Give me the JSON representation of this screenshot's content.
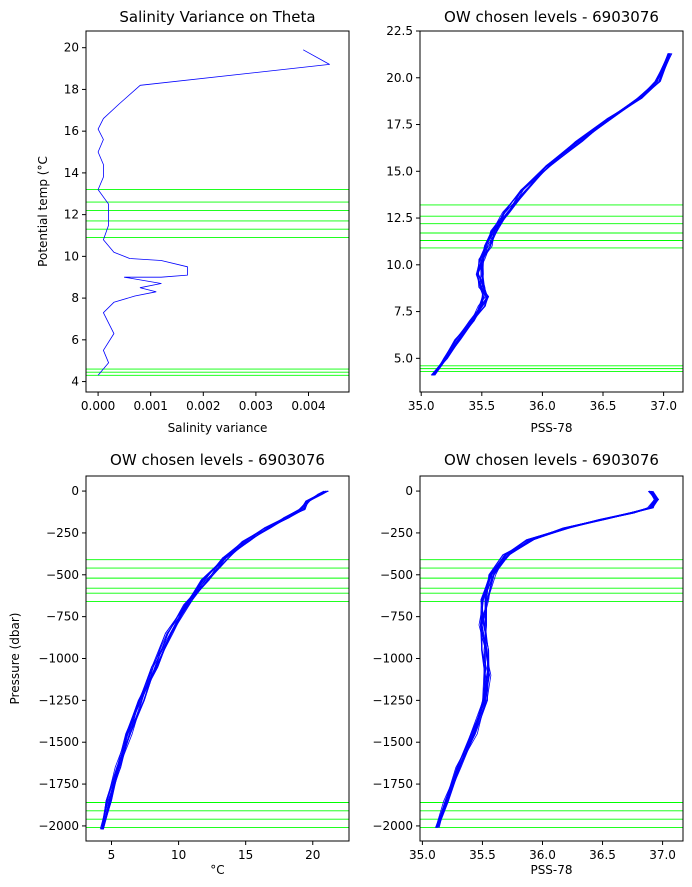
{
  "figure": {
    "y_label_shared_bottom": "Pressure (dbar)"
  },
  "chart_data": [
    {
      "type": "line",
      "title": "Salinity Variance on Theta",
      "xlabel": "Salinity variance",
      "ylabel": "Potential temp (°C",
      "xlim": [
        -0.00023,
        0.00477
      ],
      "ylim": [
        3.5,
        20.8
      ],
      "xticks": [
        0.0,
        0.001,
        0.002,
        0.003,
        0.004
      ],
      "xtick_labels": [
        "0.000",
        "0.001",
        "0.002",
        "0.003",
        "0.004"
      ],
      "yticks": [
        4,
        6,
        8,
        10,
        12,
        14,
        16,
        18,
        20
      ],
      "ytick_labels": [
        "4",
        "6",
        "8",
        "10",
        "12",
        "14",
        "16",
        "18",
        "20"
      ],
      "series_color": "#0000ff",
      "hline_color": "#00ff00",
      "hlines": [
        4.3,
        4.45,
        4.6,
        10.9,
        11.3,
        11.7,
        12.2,
        12.6,
        13.2
      ],
      "series": [
        {
          "x": [
            0.0,
            0.0002,
            0.0001,
            0.0003,
            0.0001,
            0.0003,
            0.0007,
            0.0011,
            0.0008,
            0.0012,
            0.0005,
            0.0012,
            0.0017,
            0.0017,
            0.0012,
            0.0006,
            0.0003,
            0.0001,
            0.0002,
            0.0002,
            0.0,
            0.0001,
            0.0001,
            0.0,
            0.0001,
            0.0,
            0.0001,
            0.0004,
            0.0008,
            0.0044,
            0.0039
          ],
          "y": [
            4.3,
            4.9,
            5.5,
            6.3,
            7.3,
            7.8,
            8.1,
            8.3,
            8.5,
            8.7,
            9.0,
            9.0,
            9.1,
            9.5,
            9.8,
            9.9,
            10.2,
            10.8,
            11.5,
            12.5,
            13.2,
            13.8,
            14.4,
            15.0,
            15.6,
            16.1,
            16.6,
            17.3,
            18.2,
            19.2,
            19.9
          ]
        }
      ]
    },
    {
      "type": "line",
      "title": "OW chosen levels - 6903076",
      "xlabel": "PSS-78",
      "ylabel": "",
      "xlim": [
        34.99,
        37.16
      ],
      "ylim": [
        3.2,
        22.5
      ],
      "xticks": [
        35.0,
        35.5,
        36.0,
        36.5,
        37.0
      ],
      "xtick_labels": [
        "35.0",
        "35.5",
        "36.0",
        "36.5",
        "37.0"
      ],
      "yticks": [
        5.0,
        7.5,
        10.0,
        12.5,
        15.0,
        17.5,
        20.0,
        22.5
      ],
      "ytick_labels": [
        "5.0",
        "7.5",
        "10.0",
        "12.5",
        "15.0",
        "17.5",
        "20.0",
        "22.5"
      ],
      "series_color": "#0000ff",
      "hline_color": "#00ff00",
      "hlines": [
        4.3,
        4.45,
        4.6,
        10.9,
        11.3,
        11.7,
        12.2,
        12.6,
        13.2
      ],
      "series": [
        {
          "x": [
            35.1,
            35.2,
            35.3,
            35.42,
            35.5,
            35.53,
            35.5,
            35.48,
            35.5,
            35.55,
            35.6,
            35.7,
            35.85,
            36.05,
            36.3,
            36.55,
            36.8,
            36.95,
            37.05
          ],
          "y": [
            4.1,
            5.0,
            6.0,
            7.0,
            7.8,
            8.3,
            8.8,
            9.5,
            10.3,
            11.0,
            11.8,
            12.8,
            14.0,
            15.3,
            16.6,
            17.8,
            18.9,
            19.8,
            21.3
          ]
        }
      ]
    },
    {
      "type": "line",
      "title": "OW chosen levels - 6903076",
      "xlabel": "°C",
      "ylabel": "Pressure (dbar)",
      "xlim": [
        3.1,
        22.7
      ],
      "ylim": [
        -2090,
        90
      ],
      "xticks": [
        5,
        10,
        15,
        20
      ],
      "xtick_labels": [
        "5",
        "10",
        "15",
        "20"
      ],
      "yticks": [
        0,
        -250,
        -500,
        -750,
        -1000,
        -1250,
        -1500,
        -1750,
        -2000
      ],
      "ytick_labels": [
        "0",
        "−250",
        "−500",
        "−750",
        "−1000",
        "−1250",
        "−1500",
        "−1750",
        "−2000"
      ],
      "series_color": "#0000ff",
      "hline_color": "#00ff00",
      "hlines": [
        -410,
        -460,
        -520,
        -580,
        -610,
        -660,
        -1860,
        -1910,
        -1960,
        -2010
      ],
      "series": [
        {
          "x": [
            4.3,
            4.8,
            5.5,
            6.3,
            7.2,
            8.2,
            9.3,
            10.6,
            12.0,
            13.5,
            15.0,
            16.6,
            18.0,
            19.2,
            19.6,
            20.5,
            21.0
          ],
          "y": [
            -2020,
            -1850,
            -1650,
            -1450,
            -1250,
            -1050,
            -850,
            -680,
            -530,
            -400,
            -300,
            -220,
            -160,
            -110,
            -60,
            -20,
            0
          ]
        }
      ]
    },
    {
      "type": "line",
      "title": "OW chosen levels - 6903076",
      "xlabel": "PSS-78",
      "ylabel": "",
      "xlim": [
        34.98,
        37.17
      ],
      "ylim": [
        -2090,
        90
      ],
      "xticks": [
        35.0,
        35.5,
        36.0,
        36.5,
        37.0
      ],
      "xtick_labels": [
        "35.0",
        "35.5",
        "36.0",
        "36.5",
        "37.0"
      ],
      "yticks": [
        0,
        -250,
        -500,
        -750,
        -1000,
        -1250,
        -1500,
        -1750,
        -2000
      ],
      "ytick_labels": [
        "0",
        "−250",
        "−500",
        "−750",
        "−1000",
        "−1250",
        "−1500",
        "−1750",
        "−2000"
      ],
      "series_color": "#0000ff",
      "hline_color": "#00ff00",
      "hlines": [
        -410,
        -460,
        -520,
        -580,
        -610,
        -660,
        -1860,
        -1910,
        -1960,
        -2010
      ],
      "series": [
        {
          "x": [
            35.12,
            35.2,
            35.3,
            35.43,
            35.52,
            35.54,
            35.52,
            35.5,
            35.52,
            35.58,
            35.7,
            35.9,
            36.2,
            36.5,
            36.75,
            36.9,
            36.95,
            36.9
          ],
          "y": [
            -2010,
            -1850,
            -1650,
            -1450,
            -1250,
            -1100,
            -950,
            -800,
            -650,
            -500,
            -380,
            -290,
            -220,
            -170,
            -130,
            -100,
            -50,
            0
          ]
        }
      ]
    }
  ]
}
